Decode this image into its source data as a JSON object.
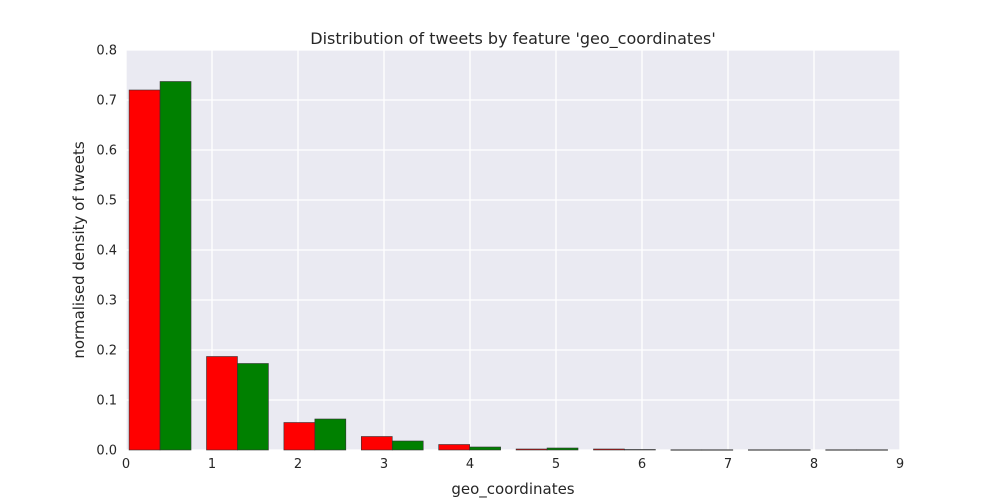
{
  "chart_data": {
    "type": "bar",
    "title": "Distribution of tweets by feature 'geo_coordinates'",
    "xlabel": "geo_coordinates",
    "ylabel": "normalised density of tweets",
    "xlim": [
      0,
      9
    ],
    "ylim": [
      0,
      0.8
    ],
    "xticks": [
      "0",
      "1",
      "2",
      "3",
      "4",
      "5",
      "6",
      "7",
      "8",
      "9"
    ],
    "yticks": [
      "0.0",
      "0.1",
      "0.2",
      "0.3",
      "0.4",
      "0.5",
      "0.6",
      "0.7",
      "0.8"
    ],
    "grid": true,
    "bin_edges": [
      0.0,
      0.9,
      1.8,
      2.7,
      3.6,
      4.5,
      5.4,
      6.3,
      7.2,
      8.1,
      9.0
    ],
    "series": [
      {
        "color": "#ff0000",
        "values": [
          0.72,
          0.187,
          0.055,
          0.027,
          0.011,
          0.002,
          0.002,
          0.0005,
          0.0005,
          0.0005
        ]
      },
      {
        "color": "#008000",
        "values": [
          0.737,
          0.173,
          0.062,
          0.018,
          0.006,
          0.004,
          0.001,
          0.0005,
          0.0005,
          0.0005
        ]
      }
    ]
  }
}
